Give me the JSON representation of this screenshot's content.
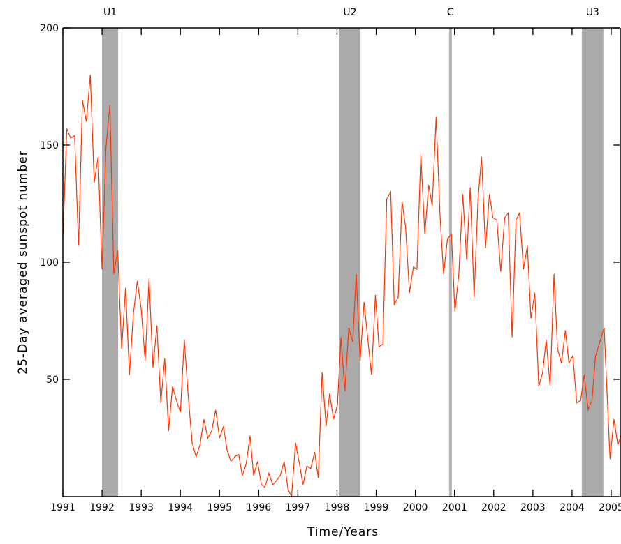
{
  "chart_data": {
    "type": "line",
    "xlabel": "Time/Years",
    "ylabel": "25-Day averaged sunspot number",
    "xlim": [
      1991,
      2005.25
    ],
    "ylim": [
      0,
      200
    ],
    "xticks": [
      1991,
      1992,
      1993,
      1994,
      1995,
      1996,
      1997,
      1998,
      1999,
      2000,
      2001,
      2002,
      2003,
      2004,
      2005
    ],
    "yticks": [
      50,
      100,
      150,
      200
    ],
    "bands": [
      {
        "label": "U1",
        "start": 1992.0,
        "end": 1992.41,
        "color": "#aaaaaa"
      },
      {
        "label": "U2",
        "start": 1998.06,
        "end": 1998.6,
        "color": "#aaaaaa"
      },
      {
        "label": "C",
        "start": 2000.86,
        "end": 2000.93,
        "color": "#b4b4b4"
      },
      {
        "label": "U3",
        "start": 2004.25,
        "end": 2004.8,
        "color": "#aaaaaa"
      }
    ],
    "series": [
      {
        "color": "#ff3300",
        "x": [
          1991.0,
          1991.1,
          1991.2,
          1991.3,
          1991.4,
          1991.5,
          1991.6,
          1991.7,
          1991.8,
          1991.9,
          1992.0,
          1992.1,
          1992.2,
          1992.3,
          1992.4,
          1992.5,
          1992.6,
          1992.7,
          1992.8,
          1992.9,
          1993.0,
          1993.1,
          1993.2,
          1993.3,
          1993.4,
          1993.5,
          1993.6,
          1993.7,
          1993.8,
          1993.9,
          1994.0,
          1994.1,
          1994.2,
          1994.3,
          1994.4,
          1994.5,
          1994.6,
          1994.7,
          1994.8,
          1994.9,
          1995.0,
          1995.1,
          1995.19,
          1995.29,
          1995.39,
          1995.49,
          1995.58,
          1995.68,
          1995.78,
          1995.87,
          1995.97,
          1996.07,
          1996.16,
          1996.26,
          1996.36,
          1996.46,
          1996.55,
          1996.65,
          1996.75,
          1996.84,
          1996.94,
          1997.04,
          1997.13,
          1997.23,
          1997.33,
          1997.43,
          1997.52,
          1997.62,
          1997.72,
          1997.81,
          1997.91,
          1998.01,
          1998.1,
          1998.2,
          1998.3,
          1998.4,
          1998.49,
          1998.59,
          1998.69,
          1998.78,
          1998.88,
          1998.98,
          1999.07,
          1999.17,
          1999.27,
          1999.37,
          1999.46,
          1999.56,
          1999.66,
          1999.75,
          1999.85,
          1999.95,
          2000.04,
          2000.14,
          2000.24,
          2000.34,
          2000.43,
          2000.53,
          2000.63,
          2000.72,
          2000.82,
          2000.92,
          2001.01,
          2001.11,
          2001.21,
          2001.31,
          2001.4,
          2001.5,
          2001.6,
          2001.69,
          2001.79,
          2001.89,
          2001.98,
          2002.08,
          2002.18,
          2002.28,
          2002.37,
          2002.47,
          2002.57,
          2002.66,
          2002.76,
          2002.86,
          2002.95,
          2003.05,
          2003.15,
          2003.25,
          2003.34,
          2003.44,
          2003.54,
          2003.63,
          2003.73,
          2003.83,
          2003.92,
          2004.02,
          2004.12,
          2004.22,
          2004.31,
          2004.41,
          2004.51,
          2004.6,
          2004.82,
          2004.97,
          2005.07,
          2005.17,
          2005.25
        ],
        "values": [
          110,
          157,
          153,
          154,
          107,
          169,
          160,
          180,
          134,
          145,
          97,
          149,
          167,
          95,
          105,
          63,
          89,
          52,
          78,
          92,
          80,
          58,
          93,
          55,
          73,
          40,
          59,
          28,
          47,
          41,
          36,
          67,
          43,
          23,
          17,
          22,
          33,
          25,
          28,
          37,
          25,
          30,
          20,
          15,
          17,
          18,
          9,
          14,
          26,
          9,
          15,
          5,
          4,
          10,
          5,
          7,
          9,
          15,
          3,
          0,
          23,
          14,
          5,
          13,
          12,
          19,
          8,
          53,
          30,
          44,
          33,
          39,
          68,
          45,
          72,
          66,
          95,
          58,
          83,
          68,
          52,
          86,
          64,
          65,
          127,
          130,
          82,
          85,
          126,
          115,
          87,
          98,
          97,
          146,
          112,
          133,
          124,
          162,
          120,
          95,
          110,
          112,
          79,
          95,
          129,
          101,
          132,
          85,
          127,
          145,
          106,
          129,
          119,
          118,
          96,
          119,
          121,
          68,
          118,
          121,
          97,
          107,
          76,
          87,
          47,
          53,
          67,
          47,
          95,
          63,
          57,
          71,
          57,
          60,
          40,
          41,
          52,
          37,
          41,
          60,
          72,
          16,
          33,
          22,
          26
        ]
      }
    ]
  }
}
